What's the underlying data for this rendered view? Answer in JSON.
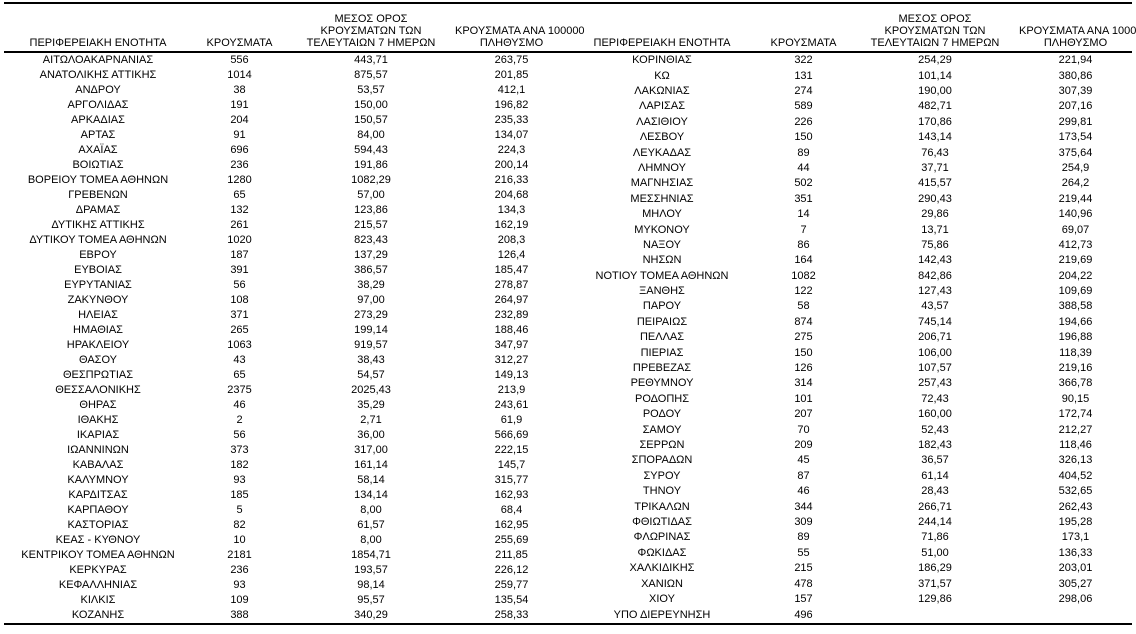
{
  "page": {
    "background_color": "#ffffff",
    "text_color": "#000000",
    "border_color": "#000000",
    "description": "COVID-19 cases table by Greek regional unit, two side-by-side column groups"
  },
  "columns": [
    "region",
    "cases",
    "avg7",
    "per100k"
  ],
  "headers": {
    "region": "ΠΕΡΙΦΕΡΕΙΑΚΗ ΕΝΟΤΗΤΑ",
    "cases": "ΚΡΟΥΣΜΑΤΑ",
    "avg7": "ΜΕΣΟΣ ΟΡΟΣ\nΚΡΟΥΣΜΑΤΩΝ ΤΩΝ\nΤΕΛΕΥΤΑΙΩΝ 7 ΗΜΕΡΩΝ",
    "per100k": "ΚΡΟΥΣΜΑΤΑ ΑΝΑ 100000\nΠΛΗΘΥΣΜΟ"
  },
  "left_table": {
    "rows": [
      [
        "ΑΙΤΩΛΟΑΚΑΡΝΑΝΙΑΣ",
        "556",
        "443,71",
        "263,75"
      ],
      [
        "ΑΝΑΤΟΛΙΚΗΣ ΑΤΤΙΚΗΣ",
        "1014",
        "875,57",
        "201,85"
      ],
      [
        "ΑΝΔΡΟΥ",
        "38",
        "53,57",
        "412,1"
      ],
      [
        "ΑΡΓΟΛΙΔΑΣ",
        "191",
        "150,00",
        "196,82"
      ],
      [
        "ΑΡΚΑΔΙΑΣ",
        "204",
        "150,57",
        "235,33"
      ],
      [
        "ΑΡΤΑΣ",
        "91",
        "84,00",
        "134,07"
      ],
      [
        "ΑΧΑΪΑΣ",
        "696",
        "594,43",
        "224,3"
      ],
      [
        "ΒΟΙΩΤΙΑΣ",
        "236",
        "191,86",
        "200,14"
      ],
      [
        "ΒΟΡΕΙΟΥ ΤΟΜΕΑ ΑΘΗΝΩΝ",
        "1280",
        "1082,29",
        "216,33"
      ],
      [
        "ΓΡΕΒΕΝΩΝ",
        "65",
        "57,00",
        "204,68"
      ],
      [
        "ΔΡΑΜΑΣ",
        "132",
        "123,86",
        "134,3"
      ],
      [
        "ΔΥΤΙΚΗΣ ΑΤΤΙΚΗΣ",
        "261",
        "215,57",
        "162,19"
      ],
      [
        "ΔΥΤΙΚΟΥ ΤΟΜΕΑ ΑΘΗΝΩΝ",
        "1020",
        "823,43",
        "208,3"
      ],
      [
        "ΕΒΡΟΥ",
        "187",
        "137,29",
        "126,4"
      ],
      [
        "ΕΥΒΟΙΑΣ",
        "391",
        "386,57",
        "185,47"
      ],
      [
        "ΕΥΡΥΤΑΝΙΑΣ",
        "56",
        "38,29",
        "278,87"
      ],
      [
        "ΖΑΚΥΝΘΟΥ",
        "108",
        "97,00",
        "264,97"
      ],
      [
        "ΗΛΕΙΑΣ",
        "371",
        "273,29",
        "232,89"
      ],
      [
        "ΗΜΑΘΙΑΣ",
        "265",
        "199,14",
        "188,46"
      ],
      [
        "ΗΡΑΚΛΕΙΟΥ",
        "1063",
        "919,57",
        "347,97"
      ],
      [
        "ΘΑΣΟΥ",
        "43",
        "38,43",
        "312,27"
      ],
      [
        "ΘΕΣΠΡΩΤΙΑΣ",
        "65",
        "54,57",
        "149,13"
      ],
      [
        "ΘΕΣΣΑΛΟΝΙΚΗΣ",
        "2375",
        "2025,43",
        "213,9"
      ],
      [
        "ΘΗΡΑΣ",
        "46",
        "35,29",
        "243,61"
      ],
      [
        "ΙΘΑΚΗΣ",
        "2",
        "2,71",
        "61,9"
      ],
      [
        "ΙΚΑΡΙΑΣ",
        "56",
        "36,00",
        "566,69"
      ],
      [
        "ΙΩΑΝΝΙΝΩΝ",
        "373",
        "317,00",
        "222,15"
      ],
      [
        "ΚΑΒΑΛΑΣ",
        "182",
        "161,14",
        "145,7"
      ],
      [
        "ΚΑΛΥΜΝΟΥ",
        "93",
        "58,14",
        "315,77"
      ],
      [
        "ΚΑΡΔΙΤΣΑΣ",
        "185",
        "134,14",
        "162,93"
      ],
      [
        "ΚΑΡΠΑΘΟΥ",
        "5",
        "8,00",
        "68,4"
      ],
      [
        "ΚΑΣΤΟΡΙΑΣ",
        "82",
        "61,57",
        "162,95"
      ],
      [
        "ΚΕΑΣ - ΚΥΘΝΟΥ",
        "10",
        "8,00",
        "255,69"
      ],
      [
        "ΚΕΝΤΡΙΚΟΥ ΤΟΜΕΑ ΑΘΗΝΩΝ",
        "2181",
        "1854,71",
        "211,85"
      ],
      [
        "ΚΕΡΚΥΡΑΣ",
        "236",
        "193,57",
        "226,12"
      ],
      [
        "ΚΕΦΑΛΛΗΝΙΑΣ",
        "93",
        "98,14",
        "259,77"
      ],
      [
        "ΚΙΛΚΙΣ",
        "109",
        "95,57",
        "135,54"
      ],
      [
        "ΚΟΖΑΝΗΣ",
        "388",
        "340,29",
        "258,33"
      ]
    ]
  },
  "right_table": {
    "rows": [
      [
        "ΚΟΡΙΝΘΙΑΣ",
        "322",
        "254,29",
        "221,94"
      ],
      [
        "ΚΩ",
        "131",
        "101,14",
        "380,86"
      ],
      [
        "ΛΑΚΩΝΙΑΣ",
        "274",
        "190,00",
        "307,39"
      ],
      [
        "ΛΑΡΙΣΑΣ",
        "589",
        "482,71",
        "207,16"
      ],
      [
        "ΛΑΣΙΘΙΟΥ",
        "226",
        "170,86",
        "299,81"
      ],
      [
        "ΛΕΣΒΟΥ",
        "150",
        "143,14",
        "173,54"
      ],
      [
        "ΛΕΥΚΑΔΑΣ",
        "89",
        "76,43",
        "375,64"
      ],
      [
        "ΛΗΜΝΟΥ",
        "44",
        "37,71",
        "254,9"
      ],
      [
        "ΜΑΓΝΗΣΙΑΣ",
        "502",
        "415,57",
        "264,2"
      ],
      [
        "ΜΕΣΣΗΝΙΑΣ",
        "351",
        "290,43",
        "219,44"
      ],
      [
        "ΜΗΛΟΥ",
        "14",
        "29,86",
        "140,96"
      ],
      [
        "ΜΥΚΟΝΟΥ",
        "7",
        "13,71",
        "69,07"
      ],
      [
        "ΝΑΞΟΥ",
        "86",
        "75,86",
        "412,73"
      ],
      [
        "ΝΗΣΩΝ",
        "164",
        "142,43",
        "219,69"
      ],
      [
        "ΝΟΤΙΟΥ ΤΟΜΕΑ ΑΘΗΝΩΝ",
        "1082",
        "842,86",
        "204,22"
      ],
      [
        "ΞΑΝΘΗΣ",
        "122",
        "127,43",
        "109,69"
      ],
      [
        "ΠΑΡΟΥ",
        "58",
        "43,57",
        "388,58"
      ],
      [
        "ΠΕΙΡΑΙΩΣ",
        "874",
        "745,14",
        "194,66"
      ],
      [
        "ΠΕΛΛΑΣ",
        "275",
        "206,71",
        "196,88"
      ],
      [
        "ΠΙΕΡΙΑΣ",
        "150",
        "106,00",
        "118,39"
      ],
      [
        "ΠΡΕΒΕΖΑΣ",
        "126",
        "107,57",
        "219,16"
      ],
      [
        "ΡΕΘΥΜΝΟΥ",
        "314",
        "257,43",
        "366,78"
      ],
      [
        "ΡΟΔΟΠΗΣ",
        "101",
        "72,43",
        "90,15"
      ],
      [
        "ΡΟΔΟΥ",
        "207",
        "160,00",
        "172,74"
      ],
      [
        "ΣΑΜΟΥ",
        "70",
        "52,43",
        "212,27"
      ],
      [
        "ΣΕΡΡΩΝ",
        "209",
        "182,43",
        "118,46"
      ],
      [
        "ΣΠΟΡΑΔΩΝ",
        "45",
        "36,57",
        "326,13"
      ],
      [
        "ΣΥΡΟΥ",
        "87",
        "61,14",
        "404,52"
      ],
      [
        "ΤΗΝΟΥ",
        "46",
        "28,43",
        "532,65"
      ],
      [
        "ΤΡΙΚΑΛΩΝ",
        "344",
        "266,71",
        "262,43"
      ],
      [
        "ΦΘΙΩΤΙΔΑΣ",
        "309",
        "244,14",
        "195,28"
      ],
      [
        "ΦΛΩΡΙΝΑΣ",
        "89",
        "71,86",
        "173,1"
      ],
      [
        "ΦΩΚΙΔΑΣ",
        "55",
        "51,00",
        "136,33"
      ],
      [
        "ΧΑΛΚΙΔΙΚΗΣ",
        "215",
        "186,29",
        "203,01"
      ],
      [
        "ΧΑΝΙΩΝ",
        "478",
        "371,57",
        "305,27"
      ],
      [
        "ΧΙΟΥ",
        "157",
        "129,86",
        "298,06"
      ],
      [
        "ΥΠΟ ΔΙΕΡΕΥΝΗΣΗ",
        "496",
        "",
        ""
      ]
    ]
  }
}
